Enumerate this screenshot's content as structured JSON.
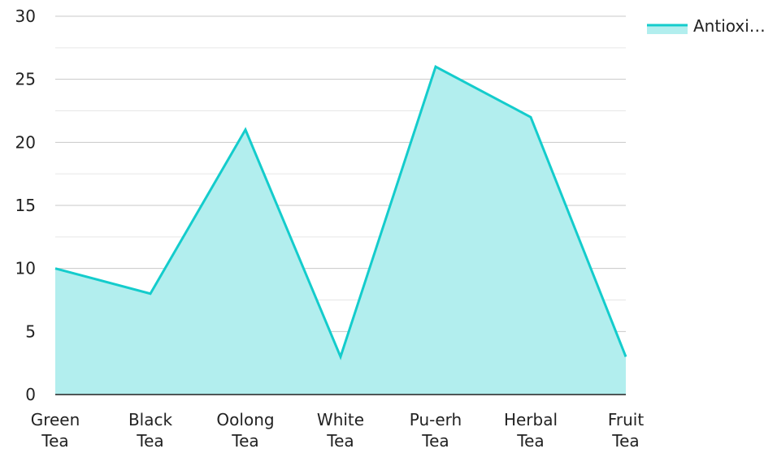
{
  "chart_data": {
    "type": "area",
    "categories": [
      [
        "Green",
        "Tea"
      ],
      [
        "Black",
        "Tea"
      ],
      [
        "Oolong",
        "Tea"
      ],
      [
        "White",
        "Tea"
      ],
      [
        "Pu-erh",
        "Tea"
      ],
      [
        "Herbal",
        "Tea"
      ],
      [
        "Fruit",
        "Tea"
      ]
    ],
    "series": [
      {
        "name": "Antioxi…",
        "values": [
          10,
          8,
          21,
          3,
          26,
          22,
          3
        ]
      }
    ],
    "ylim": [
      0,
      30
    ],
    "yticks": [
      "0",
      "5",
      "10",
      "15",
      "20",
      "25",
      "30"
    ],
    "grid": true,
    "legend_position": "top-right",
    "colors": {
      "line": "#14cccc",
      "fill": "#b2eeee",
      "grid_major": "#c8c8c8",
      "grid_minor": "#e6e6e6",
      "axis": "#222222"
    }
  }
}
